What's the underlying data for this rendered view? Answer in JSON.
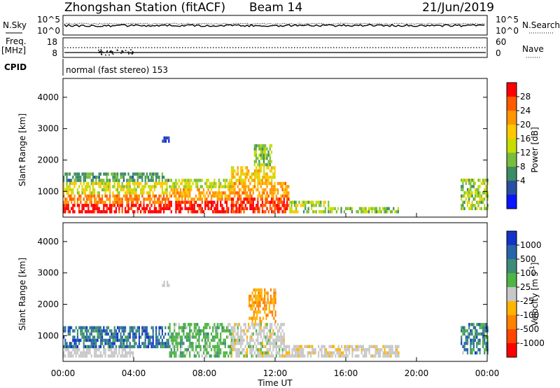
{
  "header": {
    "station": "Zhongshan Station (fitACF)",
    "beam": "Beam 14",
    "date": "21/Jun/2019"
  },
  "panels": {
    "nsky": {
      "label": "N.Sky",
      "ticks": [
        "10^5",
        "10^0"
      ]
    },
    "nsearch": {
      "label": "N.Search",
      "ticks": [
        "10^5",
        "10^0"
      ]
    },
    "freq": {
      "label": "Freq.",
      "unit": "[MHz]",
      "ticks": [
        "18",
        "8"
      ]
    },
    "nave": {
      "label": "Nave",
      "ticks": [
        "60",
        "0"
      ]
    },
    "cpid": {
      "label": "CPID",
      "text": "normal (fast stereo) 153"
    }
  },
  "power_colorbar": {
    "label": "Power [dB]",
    "ticks": [
      "28",
      "24",
      "20",
      "16",
      "12",
      "8",
      "4"
    ],
    "colors": [
      "#ff0000",
      "#ff5a00",
      "#ff9600",
      "#ffc800",
      "#c8dc00",
      "#78be3c",
      "#3c8c64",
      "#2850a0",
      "#0a14ff"
    ]
  },
  "velocity_colorbar": {
    "label": "Velocity [m s",
    "label_sup": "-1",
    "label_end": "]",
    "ticks": [
      "1000",
      "500",
      "100",
      "25",
      "-25",
      "-100",
      "-500",
      "-1000"
    ],
    "colors": [
      "#1432c8",
      "#2864aa",
      "#3c8c78",
      "#50b446",
      "#c8c8c8",
      "#ffb400",
      "#ff8200",
      "#ff4600",
      "#ff0000"
    ]
  },
  "chart_data": {
    "type": "heatmap",
    "xlabel": "Time UT",
    "x_ticks": [
      "00:00",
      "04:00",
      "08:00",
      "12:00",
      "16:00",
      "20:00",
      "00:00"
    ],
    "xlim_hours": [
      0,
      24
    ],
    "panels": [
      {
        "name": "power",
        "ylabel": "Slant Range [km]",
        "y_ticks": [
          "4000",
          "3000",
          "2000",
          "1000"
        ],
        "ylim": [
          180,
          4600
        ],
        "zlim": [
          0,
          30
        ],
        "blocks": [
          {
            "t0": 0.0,
            "t1": 6.0,
            "r0": 300,
            "r1": 600,
            "v0": 26,
            "v1": 30
          },
          {
            "t0": 0.0,
            "t1": 6.0,
            "r0": 600,
            "r1": 900,
            "v0": 20,
            "v1": 26
          },
          {
            "t0": 0.0,
            "t1": 6.0,
            "r0": 900,
            "r1": 1300,
            "v0": 12,
            "v1": 20
          },
          {
            "t0": 0.0,
            "t1": 6.0,
            "r0": 1300,
            "r1": 1600,
            "v0": 6,
            "v1": 12
          },
          {
            "t0": 6.0,
            "t1": 9.5,
            "r0": 300,
            "r1": 700,
            "v0": 26,
            "v1": 30
          },
          {
            "t0": 6.0,
            "t1": 9.5,
            "r0": 700,
            "r1": 1100,
            "v0": 18,
            "v1": 24
          },
          {
            "t0": 6.0,
            "t1": 9.5,
            "r0": 1100,
            "r1": 1400,
            "v0": 10,
            "v1": 18
          },
          {
            "t0": 9.5,
            "t1": 12.8,
            "r0": 300,
            "r1": 800,
            "v0": 24,
            "v1": 30
          },
          {
            "t0": 9.5,
            "t1": 12.8,
            "r0": 800,
            "r1": 1300,
            "v0": 18,
            "v1": 24
          },
          {
            "t0": 9.5,
            "t1": 12.0,
            "r0": 1300,
            "r1": 1800,
            "v0": 14,
            "v1": 22
          },
          {
            "t0": 10.8,
            "t1": 11.8,
            "r0": 1800,
            "r1": 2500,
            "v0": 8,
            "v1": 16
          },
          {
            "t0": 12.8,
            "t1": 15.0,
            "r0": 300,
            "r1": 700,
            "v0": 8,
            "v1": 18
          },
          {
            "t0": 15.0,
            "t1": 19.0,
            "r0": 300,
            "r1": 500,
            "v0": 8,
            "v1": 16
          },
          {
            "t0": 22.5,
            "t1": 24.0,
            "r0": 400,
            "r1": 1400,
            "v0": 8,
            "v1": 18
          },
          {
            "t0": 5.6,
            "t1": 6.0,
            "r0": 2550,
            "r1": 2700,
            "v0": 2,
            "v1": 6
          }
        ]
      },
      {
        "name": "velocity",
        "ylabel": "Slant Range [km]",
        "y_ticks": [
          "4000",
          "3000",
          "2000",
          "1000"
        ],
        "ylim": [
          180,
          4600
        ],
        "zlim": [
          -1000,
          1000
        ],
        "blocks": [
          {
            "t0": 0.0,
            "t1": 4.0,
            "r0": 300,
            "r1": 600,
            "v0": -50,
            "v1": 100
          },
          {
            "t0": 0.0,
            "t1": 6.0,
            "r0": 600,
            "r1": 1300,
            "v0": 300,
            "v1": 900
          },
          {
            "t0": 6.0,
            "t1": 9.5,
            "r0": 300,
            "r1": 1400,
            "v0": 50,
            "v1": 400
          },
          {
            "t0": 9.5,
            "t1": 12.5,
            "r0": 300,
            "r1": 1400,
            "v0": -150,
            "v1": 150
          },
          {
            "t0": 10.5,
            "t1": 12.0,
            "r0": 1400,
            "r1": 2500,
            "v0": -500,
            "v1": -100
          },
          {
            "t0": 12.5,
            "t1": 19.0,
            "r0": 300,
            "r1": 700,
            "v0": -150,
            "v1": 100
          },
          {
            "t0": 22.5,
            "t1": 24.0,
            "r0": 400,
            "r1": 1400,
            "v0": 100,
            "v1": 800
          },
          {
            "t0": 5.6,
            "t1": 6.0,
            "r0": 2550,
            "r1": 2700,
            "v0": -10,
            "v1": 10
          }
        ]
      }
    ]
  }
}
